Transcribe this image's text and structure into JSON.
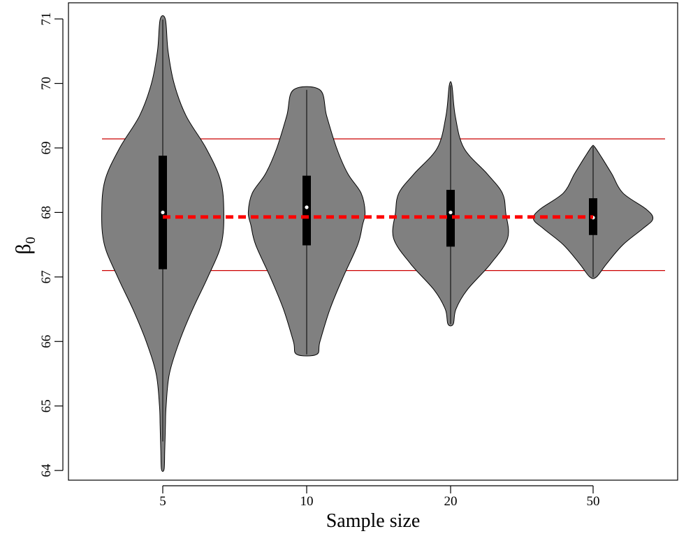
{
  "chart_data": {
    "type": "violin",
    "title": "",
    "xlabel": "Sample size",
    "ylabel": {
      "main": "β",
      "subscript": "0"
    },
    "ylim": [
      63.85,
      71.25
    ],
    "yticks": [
      "64",
      "65",
      "66",
      "67",
      "68",
      "69",
      "70",
      "71"
    ],
    "categories": [
      "5",
      "10",
      "20",
      "50"
    ],
    "violins": [
      {
        "category": "5",
        "min": 64.02,
        "max": 70.99,
        "whisker_low": 64.45,
        "whisker_high": 70.99,
        "q1": 67.12,
        "q3": 68.88,
        "median": 68.0,
        "density": [
          [
            64.02,
            0.02
          ],
          [
            64.3,
            0.03
          ],
          [
            64.7,
            0.04
          ],
          [
            65.0,
            0.05
          ],
          [
            65.5,
            0.1
          ],
          [
            66.0,
            0.25
          ],
          [
            66.5,
            0.45
          ],
          [
            67.0,
            0.68
          ],
          [
            67.5,
            0.88
          ],
          [
            68.0,
            0.92
          ],
          [
            68.5,
            0.87
          ],
          [
            69.0,
            0.65
          ],
          [
            69.5,
            0.35
          ],
          [
            70.0,
            0.17
          ],
          [
            70.5,
            0.08
          ],
          [
            70.99,
            0.04
          ]
        ]
      },
      {
        "category": "10",
        "min": 65.8,
        "max": 69.9,
        "whisker_low": 65.8,
        "whisker_high": 69.9,
        "q1": 67.49,
        "q3": 68.57,
        "median": 68.08,
        "density": [
          [
            65.8,
            0.15
          ],
          [
            66.0,
            0.2
          ],
          [
            66.5,
            0.35
          ],
          [
            67.0,
            0.55
          ],
          [
            67.5,
            0.77
          ],
          [
            67.8,
            0.84
          ],
          [
            68.0,
            0.88
          ],
          [
            68.3,
            0.82
          ],
          [
            68.6,
            0.62
          ],
          [
            69.0,
            0.45
          ],
          [
            69.5,
            0.3
          ],
          [
            69.9,
            0.2
          ]
        ]
      },
      {
        "category": "20",
        "min": 66.27,
        "max": 69.97,
        "whisker_low": 66.27,
        "whisker_high": 69.97,
        "q1": 67.47,
        "q3": 68.35,
        "median": 68.0,
        "density": [
          [
            66.27,
            0.04
          ],
          [
            66.5,
            0.08
          ],
          [
            66.8,
            0.25
          ],
          [
            67.2,
            0.6
          ],
          [
            67.6,
            0.86
          ],
          [
            68.0,
            0.83
          ],
          [
            68.3,
            0.78
          ],
          [
            68.6,
            0.55
          ],
          [
            69.0,
            0.2
          ],
          [
            69.5,
            0.07
          ],
          [
            69.97,
            0.02
          ]
        ]
      },
      {
        "category": "50",
        "min": 67.0,
        "max": 69.02,
        "whisker_low": 67.0,
        "whisker_high": 69.02,
        "q1": 67.65,
        "q3": 68.22,
        "median": 67.92,
        "density": [
          [
            67.0,
            0.05
          ],
          [
            67.2,
            0.2
          ],
          [
            67.5,
            0.45
          ],
          [
            67.75,
            0.75
          ],
          [
            67.9,
            0.9
          ],
          [
            68.05,
            0.8
          ],
          [
            68.3,
            0.45
          ],
          [
            68.6,
            0.28
          ],
          [
            68.85,
            0.13
          ],
          [
            69.02,
            0.02
          ]
        ]
      }
    ],
    "reference_lines": [
      69.14,
      67.1
    ],
    "reference_line_color": "#cc0000",
    "mean_trend": {
      "values": [
        67.93,
        67.93,
        67.93,
        67.93
      ],
      "color": "#ff0000",
      "style": "dashed"
    },
    "violin_fill": "#808080",
    "box_color": "#000000",
    "median_marker_color": "#ffffff",
    "grid": false,
    "legend": "none"
  }
}
